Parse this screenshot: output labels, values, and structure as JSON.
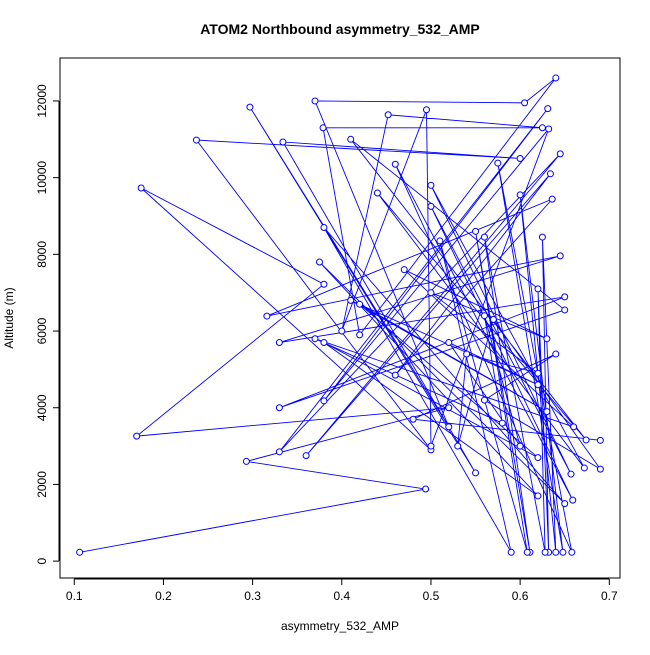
{
  "chart_data": {
    "type": "line",
    "title": "ATOM2 Northbound asymmetry_532_AMP",
    "x_label": "asymmetry_532_AMP",
    "y_label": "Altitude (m)",
    "color": "#0000ff",
    "x": [
      0.106,
      0.494,
      0.293,
      0.52,
      0.17,
      0.38,
      0.175,
      0.5,
      0.237,
      0.6,
      0.334,
      0.55,
      0.297,
      0.52,
      0.37,
      0.605,
      0.64,
      0.42,
      0.379,
      0.625,
      0.452,
      0.4,
      0.495,
      0.5,
      0.632,
      0.38,
      0.631,
      0.33,
      0.645,
      0.36,
      0.634,
      0.46,
      0.636,
      0.316,
      0.645,
      0.33,
      0.65,
      0.33,
      0.65,
      0.41,
      0.674,
      0.44,
      0.672,
      0.5,
      0.657,
      0.5,
      0.659,
      0.46,
      0.658,
      0.575,
      0.648,
      0.6,
      0.64,
      0.625,
      0.632,
      0.62,
      0.628,
      0.56,
      0.611,
      0.55,
      0.608,
      0.51,
      0.59,
      0.38,
      0.65,
      0.375,
      0.62,
      0.38,
      0.62,
      0.42,
      0.63,
      0.41,
      0.62,
      0.52,
      0.6,
      0.56,
      0.58,
      0.37,
      0.66,
      0.47,
      0.63,
      0.5,
      0.62,
      0.54,
      0.53,
      0.57,
      0.69,
      0.56,
      0.64,
      0.48,
      0.69
    ],
    "series": [
      {
        "name": "Altitude",
        "color": "#0000ff",
        "values": [
          230,
          1880,
          2600,
          4000,
          3260,
          7220,
          9730,
          2900,
          10980,
          10500,
          10930,
          2300,
          11840,
          3500,
          12000,
          11950,
          12600,
          5900,
          11300,
          11300,
          11640,
          6000,
          11770,
          3000,
          11270,
          4180,
          11800,
          2850,
          10620,
          2750,
          10100,
          4850,
          9440,
          6390,
          7960,
          5700,
          6890,
          4000,
          6550,
          11000,
          3160,
          9600,
          2430,
          9800,
          2270,
          9250,
          1590,
          10350,
          230,
          10380,
          230,
          9550,
          230,
          8450,
          230,
          7100,
          230,
          8450,
          230,
          8600,
          230,
          8350,
          230,
          8700,
          1500,
          7800,
          1700,
          5700,
          2700,
          6700,
          3900,
          6800,
          4600,
          5700,
          3000,
          6400,
          3600,
          5800,
          3500,
          7600,
          5800,
          7000,
          4900,
          5400,
          3000,
          6300,
          2400,
          4200,
          5400,
          3700,
          3150
        ]
      }
    ],
    "xlim": [
      0.084,
      0.712
    ],
    "ylim": [
      -440,
      13120
    ],
    "xticks": [
      0.1,
      0.2,
      0.3,
      0.4,
      0.5,
      0.6,
      0.7
    ],
    "yticks": [
      0,
      2000,
      4000,
      6000,
      8000,
      10000,
      12000
    ]
  }
}
